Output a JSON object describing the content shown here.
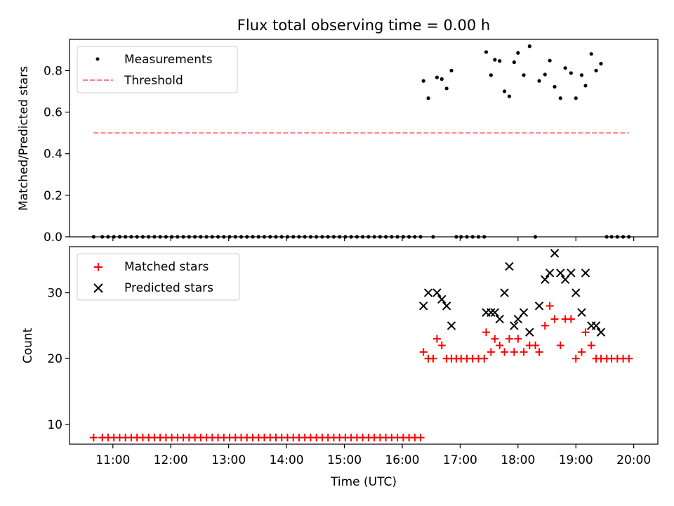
{
  "figure": {
    "title": "Flux total observing time = 0.00 h"
  },
  "chart_data": [
    {
      "type": "scatter",
      "ylabel": "Matched/Predicted stars",
      "ylim": [
        0.0,
        0.95
      ],
      "yticks": [
        0.0,
        0.2,
        0.4,
        0.6,
        0.8
      ],
      "ytick_labels": [
        "0.0",
        "0.2",
        "0.4",
        "0.6",
        "0.8"
      ],
      "grid": false,
      "legend_position": "upper-left",
      "legend": [
        {
          "label": "Measurements",
          "marker": "dot",
          "color": "#000000"
        },
        {
          "label": "Threshold",
          "marker": "dashed-line",
          "color": "#ff7f7f"
        }
      ],
      "threshold": {
        "name": "Threshold",
        "value": 0.5,
        "x_start": "10:40",
        "x_end": "19:55",
        "color": "#ff7f7f"
      },
      "series": [
        {
          "name": "Measurements",
          "marker": "dot",
          "color": "#000000",
          "points": [
            [
              "10:40",
              0
            ],
            [
              "10:49",
              0
            ],
            [
              "10:55",
              0
            ],
            [
              "11:01",
              0
            ],
            [
              "11:07",
              0
            ],
            [
              "11:13",
              0
            ],
            [
              "11:19",
              0
            ],
            [
              "11:25",
              0
            ],
            [
              "11:31",
              0
            ],
            [
              "11:37",
              0
            ],
            [
              "11:43",
              0
            ],
            [
              "11:49",
              0
            ],
            [
              "11:55",
              0
            ],
            [
              "12:01",
              0
            ],
            [
              "12:07",
              0
            ],
            [
              "12:13",
              0
            ],
            [
              "12:19",
              0
            ],
            [
              "12:25",
              0
            ],
            [
              "12:31",
              0
            ],
            [
              "12:37",
              0
            ],
            [
              "12:43",
              0
            ],
            [
              "12:49",
              0
            ],
            [
              "12:55",
              0
            ],
            [
              "13:01",
              0
            ],
            [
              "13:07",
              0
            ],
            [
              "13:13",
              0
            ],
            [
              "13:19",
              0
            ],
            [
              "13:25",
              0
            ],
            [
              "13:31",
              0
            ],
            [
              "13:37",
              0
            ],
            [
              "13:43",
              0
            ],
            [
              "13:49",
              0
            ],
            [
              "13:55",
              0
            ],
            [
              "14:01",
              0
            ],
            [
              "14:07",
              0
            ],
            [
              "14:13",
              0
            ],
            [
              "14:19",
              0
            ],
            [
              "14:25",
              0
            ],
            [
              "14:31",
              0
            ],
            [
              "14:37",
              0
            ],
            [
              "14:43",
              0
            ],
            [
              "14:49",
              0
            ],
            [
              "14:55",
              0
            ],
            [
              "15:01",
              0
            ],
            [
              "15:07",
              0
            ],
            [
              "15:13",
              0
            ],
            [
              "15:19",
              0
            ],
            [
              "15:25",
              0
            ],
            [
              "15:31",
              0
            ],
            [
              "15:37",
              0
            ],
            [
              "15:43",
              0
            ],
            [
              "15:49",
              0
            ],
            [
              "15:55",
              0
            ],
            [
              "16:01",
              0
            ],
            [
              "16:07",
              0
            ],
            [
              "16:13",
              0
            ],
            [
              "16:19",
              0
            ],
            [
              "16:22",
              0.75
            ],
            [
              "16:27",
              0.667
            ],
            [
              "16:32",
              0
            ],
            [
              "16:36",
              0.767
            ],
            [
              "16:41",
              0.759
            ],
            [
              "16:46",
              0.714
            ],
            [
              "16:51",
              0.8
            ],
            [
              "16:56",
              0
            ],
            [
              "17:01",
              0
            ],
            [
              "17:07",
              0
            ],
            [
              "17:13",
              0
            ],
            [
              "17:19",
              0
            ],
            [
              "17:25",
              0
            ],
            [
              "17:27",
              0.889
            ],
            [
              "17:32",
              0.778
            ],
            [
              "17:36",
              0.852
            ],
            [
              "17:41",
              0.846
            ],
            [
              "17:46",
              0.7
            ],
            [
              "17:51",
              0.676
            ],
            [
              "17:56",
              0.84
            ],
            [
              "18:00",
              0.885
            ],
            [
              "18:06",
              0.778
            ],
            [
              "18:12",
              0.917
            ],
            [
              "18:18",
              0
            ],
            [
              "18:22",
              0.75
            ],
            [
              "18:28",
              0.781
            ],
            [
              "18:33",
              0.848
            ],
            [
              "18:38",
              0.722
            ],
            [
              "18:44",
              0.667
            ],
            [
              "18:49",
              0.812
            ],
            [
              "18:55",
              0.788
            ],
            [
              "19:00",
              0.667
            ],
            [
              "19:06",
              0.778
            ],
            [
              "19:10",
              0.727
            ],
            [
              "19:16",
              0.88
            ],
            [
              "19:21",
              0.8
            ],
            [
              "19:26",
              0.833
            ],
            [
              "19:32",
              0
            ],
            [
              "19:37",
              0
            ],
            [
              "19:43",
              0
            ],
            [
              "19:49",
              0
            ],
            [
              "19:55",
              0
            ]
          ]
        }
      ]
    },
    {
      "type": "scatter",
      "xlabel": "Time (UTC)",
      "ylabel": "Count",
      "xlim": [
        "10:15",
        "20:25"
      ],
      "ylim": [
        7,
        37
      ],
      "xticks": [
        "11:00",
        "12:00",
        "13:00",
        "14:00",
        "15:00",
        "16:00",
        "17:00",
        "18:00",
        "19:00",
        "20:00"
      ],
      "yticks": [
        10,
        20,
        30
      ],
      "ytick_labels": [
        "10",
        "20",
        "30"
      ],
      "grid": false,
      "legend_position": "upper-left",
      "legend": [
        {
          "label": "Matched stars",
          "marker": "plus",
          "color": "#ff0000"
        },
        {
          "label": "Predicted stars",
          "marker": "cross",
          "color": "#000000"
        }
      ],
      "series": [
        {
          "name": "Matched stars",
          "marker": "plus",
          "color": "#ff0000",
          "points": [
            [
              "10:40",
              8
            ],
            [
              "10:49",
              8
            ],
            [
              "10:55",
              8
            ],
            [
              "11:01",
              8
            ],
            [
              "11:07",
              8
            ],
            [
              "11:13",
              8
            ],
            [
              "11:19",
              8
            ],
            [
              "11:25",
              8
            ],
            [
              "11:31",
              8
            ],
            [
              "11:37",
              8
            ],
            [
              "11:43",
              8
            ],
            [
              "11:49",
              8
            ],
            [
              "11:55",
              8
            ],
            [
              "12:01",
              8
            ],
            [
              "12:07",
              8
            ],
            [
              "12:13",
              8
            ],
            [
              "12:19",
              8
            ],
            [
              "12:25",
              8
            ],
            [
              "12:31",
              8
            ],
            [
              "12:37",
              8
            ],
            [
              "12:43",
              8
            ],
            [
              "12:49",
              8
            ],
            [
              "12:55",
              8
            ],
            [
              "13:01",
              8
            ],
            [
              "13:07",
              8
            ],
            [
              "13:13",
              8
            ],
            [
              "13:19",
              8
            ],
            [
              "13:25",
              8
            ],
            [
              "13:31",
              8
            ],
            [
              "13:37",
              8
            ],
            [
              "13:43",
              8
            ],
            [
              "13:49",
              8
            ],
            [
              "13:55",
              8
            ],
            [
              "14:01",
              8
            ],
            [
              "14:07",
              8
            ],
            [
              "14:13",
              8
            ],
            [
              "14:19",
              8
            ],
            [
              "14:25",
              8
            ],
            [
              "14:31",
              8
            ],
            [
              "14:37",
              8
            ],
            [
              "14:43",
              8
            ],
            [
              "14:49",
              8
            ],
            [
              "14:55",
              8
            ],
            [
              "15:01",
              8
            ],
            [
              "15:07",
              8
            ],
            [
              "15:13",
              8
            ],
            [
              "15:19",
              8
            ],
            [
              "15:25",
              8
            ],
            [
              "15:31",
              8
            ],
            [
              "15:37",
              8
            ],
            [
              "15:43",
              8
            ],
            [
              "15:49",
              8
            ],
            [
              "15:55",
              8
            ],
            [
              "16:01",
              8
            ],
            [
              "16:07",
              8
            ],
            [
              "16:13",
              8
            ],
            [
              "16:19",
              8
            ],
            [
              "16:22",
              21
            ],
            [
              "16:27",
              20
            ],
            [
              "16:32",
              20
            ],
            [
              "16:36",
              23
            ],
            [
              "16:41",
              22
            ],
            [
              "16:46",
              20
            ],
            [
              "16:51",
              20
            ],
            [
              "16:56",
              20
            ],
            [
              "17:01",
              20
            ],
            [
              "17:07",
              20
            ],
            [
              "17:13",
              20
            ],
            [
              "17:19",
              20
            ],
            [
              "17:25",
              20
            ],
            [
              "17:27",
              24
            ],
            [
              "17:32",
              21
            ],
            [
              "17:36",
              23
            ],
            [
              "17:41",
              22
            ],
            [
              "17:46",
              21
            ],
            [
              "17:51",
              23
            ],
            [
              "17:56",
              21
            ],
            [
              "18:00",
              23
            ],
            [
              "18:06",
              21
            ],
            [
              "18:12",
              22
            ],
            [
              "18:18",
              22
            ],
            [
              "18:22",
              21
            ],
            [
              "18:28",
              25
            ],
            [
              "18:33",
              28
            ],
            [
              "18:38",
              26
            ],
            [
              "18:44",
              22
            ],
            [
              "18:49",
              26
            ],
            [
              "18:55",
              26
            ],
            [
              "19:00",
              20
            ],
            [
              "19:06",
              21
            ],
            [
              "19:10",
              24
            ],
            [
              "19:16",
              22
            ],
            [
              "19:21",
              20
            ],
            [
              "19:26",
              20
            ],
            [
              "19:32",
              20
            ],
            [
              "19:37",
              20
            ],
            [
              "19:43",
              20
            ],
            [
              "19:49",
              20
            ],
            [
              "19:55",
              20
            ]
          ]
        },
        {
          "name": "Predicted stars",
          "marker": "cross",
          "color": "#000000",
          "points": [
            [
              "16:22",
              28
            ],
            [
              "16:27",
              30
            ],
            [
              "16:36",
              30
            ],
            [
              "16:41",
              29
            ],
            [
              "16:46",
              28
            ],
            [
              "16:51",
              25
            ],
            [
              "17:27",
              27
            ],
            [
              "17:32",
              27
            ],
            [
              "17:36",
              27
            ],
            [
              "17:41",
              26
            ],
            [
              "17:46",
              30
            ],
            [
              "17:51",
              34
            ],
            [
              "17:56",
              25
            ],
            [
              "18:00",
              26
            ],
            [
              "18:06",
              27
            ],
            [
              "18:12",
              24
            ],
            [
              "18:22",
              28
            ],
            [
              "18:28",
              32
            ],
            [
              "18:33",
              33
            ],
            [
              "18:38",
              36
            ],
            [
              "18:44",
              33
            ],
            [
              "18:49",
              32
            ],
            [
              "18:55",
              33
            ],
            [
              "19:00",
              30
            ],
            [
              "19:06",
              27
            ],
            [
              "19:10",
              33
            ],
            [
              "19:16",
              25
            ],
            [
              "19:21",
              25
            ],
            [
              "19:26",
              24
            ]
          ]
        }
      ]
    }
  ]
}
